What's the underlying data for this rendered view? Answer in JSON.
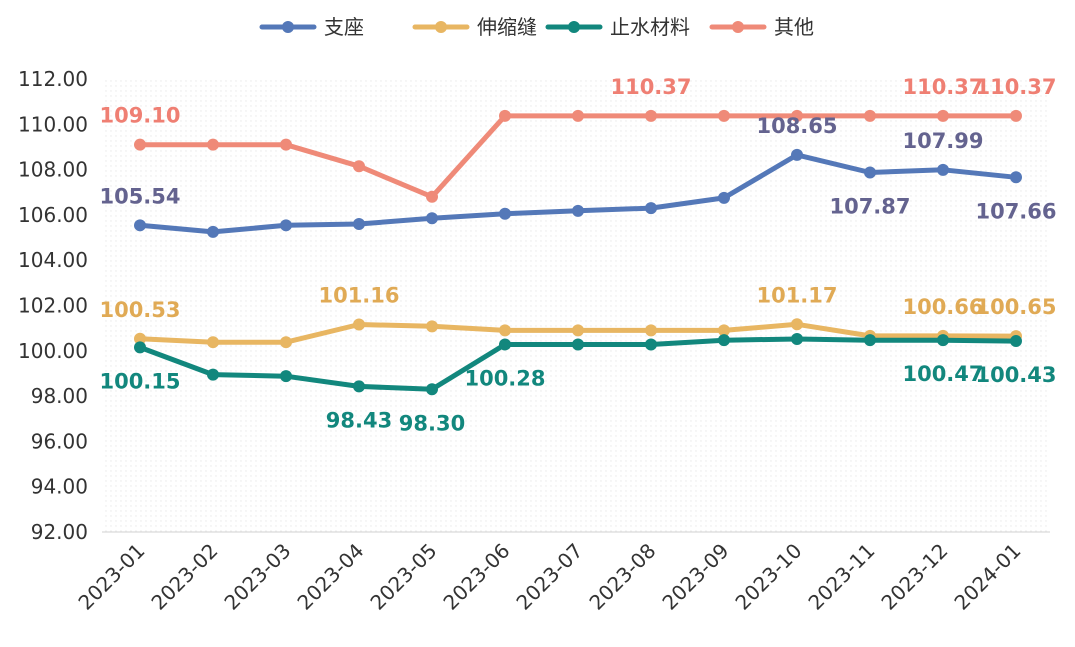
{
  "chart_data": {
    "type": "line",
    "title": "",
    "xlabel": "",
    "ylabel": "",
    "ylim": [
      92,
      112
    ],
    "yticks": [
      "112.00",
      "110.00",
      "108.00",
      "106.00",
      "104.00",
      "102.00",
      "100.00",
      "98.00",
      "96.00",
      "94.00",
      "92.00"
    ],
    "x": [
      "2023-01",
      "2023-02",
      "2023-03",
      "2023-04",
      "2023-05",
      "2023-06",
      "2023-07",
      "2023-08",
      "2023-09",
      "2023-10",
      "2023-11",
      "2023-12",
      "2024-01"
    ],
    "legend_position": "top",
    "grid": false,
    "series": [
      {
        "name": "支座",
        "color": "#5478b8",
        "label_color": "#64638f",
        "values": [
          105.54,
          105.25,
          105.54,
          105.6,
          105.85,
          106.05,
          106.18,
          106.3,
          106.75,
          108.65,
          107.87,
          107.99,
          107.66
        ],
        "labels": [
          {
            "i": 0,
            "text": "105.54",
            "pos": "above"
          },
          {
            "i": 9,
            "text": "108.65",
            "pos": "above"
          },
          {
            "i": 10,
            "text": "107.87",
            "pos": "below"
          },
          {
            "i": 11,
            "text": "107.99",
            "pos": "above"
          },
          {
            "i": 12,
            "text": "107.66",
            "pos": "below"
          }
        ]
      },
      {
        "name": "伸缩缝",
        "color": "#e8b662",
        "label_color": "#e0aa55",
        "values": [
          100.53,
          100.38,
          100.38,
          101.16,
          101.08,
          100.9,
          100.9,
          100.9,
          100.9,
          101.17,
          100.66,
          100.66,
          100.65
        ],
        "labels": [
          {
            "i": 0,
            "text": "100.53",
            "pos": "above"
          },
          {
            "i": 3,
            "text": "101.16",
            "pos": "above"
          },
          {
            "i": 9,
            "text": "101.17",
            "pos": "above"
          },
          {
            "i": 11,
            "text": "100.66",
            "pos": "above"
          },
          {
            "i": 12,
            "text": "100.65",
            "pos": "above"
          }
        ]
      },
      {
        "name": "止水材料",
        "color": "#12877d",
        "label_color": "#12877d",
        "values": [
          100.15,
          98.95,
          98.88,
          98.43,
          98.3,
          100.28,
          100.28,
          100.28,
          100.47,
          100.52,
          100.47,
          100.47,
          100.43
        ],
        "labels": [
          {
            "i": 0,
            "text": "100.15",
            "pos": "below"
          },
          {
            "i": 3,
            "text": "98.43",
            "pos": "below"
          },
          {
            "i": 4,
            "text": "98.30",
            "pos": "below"
          },
          {
            "i": 5,
            "text": "100.28",
            "pos": "below"
          },
          {
            "i": 11,
            "text": "100.47",
            "pos": "below"
          },
          {
            "i": 12,
            "text": "100.43",
            "pos": "below"
          }
        ]
      },
      {
        "name": "其他",
        "color": "#ef8a78",
        "label_color": "#ef7f73",
        "values": [
          109.1,
          109.1,
          109.1,
          108.15,
          106.8,
          110.37,
          110.37,
          110.37,
          110.37,
          110.37,
          110.37,
          110.37,
          110.37
        ],
        "labels": [
          {
            "i": 0,
            "text": "109.10",
            "pos": "above"
          },
          {
            "i": 7,
            "text": "110.37",
            "pos": "above"
          },
          {
            "i": 11,
            "text": "110.37",
            "pos": "above"
          },
          {
            "i": 12,
            "text": "110.37",
            "pos": "above"
          }
        ]
      }
    ]
  }
}
